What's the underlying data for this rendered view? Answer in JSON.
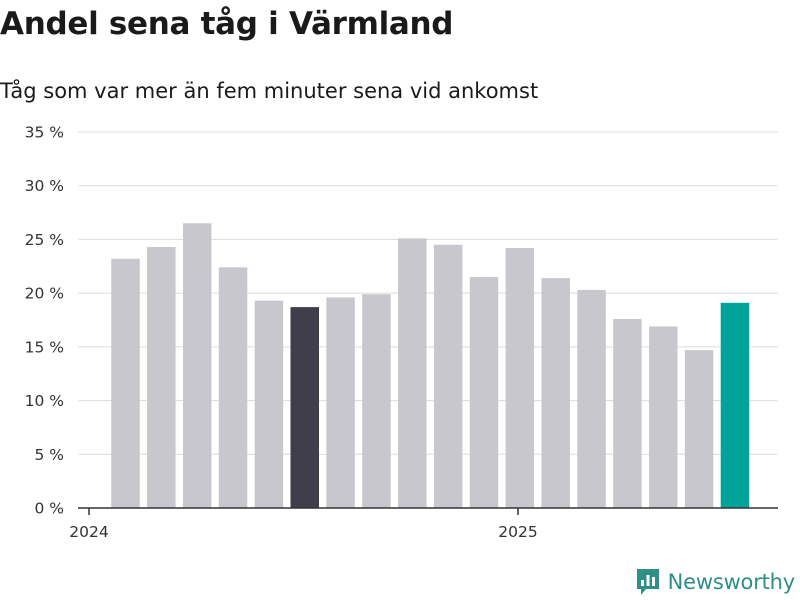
{
  "colors": {
    "bar_default": "#c8c7cd",
    "bar_highlight_dark": "#403e4b",
    "bar_highlight_teal": "#00a39a",
    "grid": "#dcdcdc",
    "axis": "#333333",
    "brand": "#2e8f86"
  },
  "chart_data": {
    "type": "bar",
    "title": "Andel sena tåg i Värmland",
    "subtitle": "Tåg som var mer än fem minuter sena vid ankomst",
    "x": [
      "2024-01",
      "2024-02",
      "2024-03",
      "2024-04",
      "2024-05",
      "2024-06",
      "2024-07",
      "2024-08",
      "2024-09",
      "2024-10",
      "2024-11",
      "2024-12",
      "2025-01",
      "2025-02",
      "2025-03",
      "2025-04",
      "2025-05",
      "2025-06"
    ],
    "values": [
      23.2,
      24.3,
      26.5,
      22.4,
      19.3,
      18.7,
      19.6,
      19.9,
      25.1,
      24.5,
      21.5,
      24.2,
      21.4,
      20.3,
      17.6,
      16.9,
      14.7,
      19.1
    ],
    "highlight": {
      "2024-06": "dark",
      "2025-06": "teal"
    },
    "ylim": [
      0,
      35
    ],
    "yticks": [
      0,
      5,
      10,
      15,
      20,
      25,
      30,
      35
    ],
    "ytick_suffix": " %",
    "xticks": [
      {
        "label": "2024",
        "at": "2024-01"
      },
      {
        "label": "2025",
        "at": "2025-01"
      }
    ],
    "grid": true,
    "legend": "none"
  },
  "brand": {
    "name": "Newsworthy",
    "logo_icon": "bar-chart-icon"
  }
}
